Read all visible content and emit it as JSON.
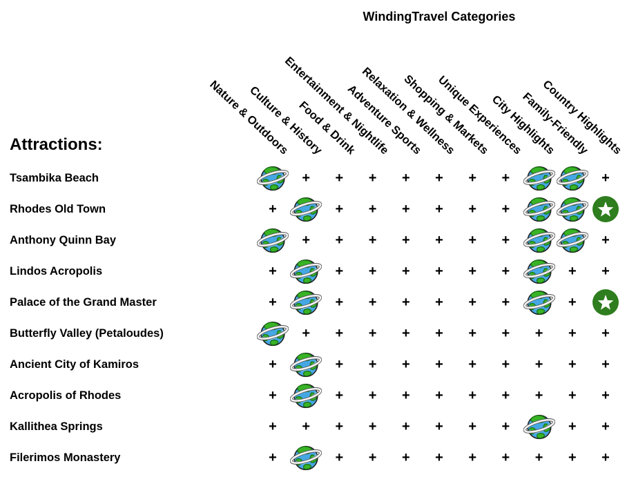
{
  "title": "WindingTravel Categories",
  "attractions_heading": "Attractions:",
  "symbols": {
    "plus": "+"
  },
  "icons": {
    "globe": "ringed-globe-icon",
    "star": "star-badge-icon",
    "plus": "plus-marker"
  },
  "colors": {
    "text": "#000000",
    "star_badge_green": "#2e7d1e",
    "star_fill": "#ffffff",
    "globe_ocean": "#45a7e3",
    "globe_land": "#38b326",
    "globe_land_outline": "#177010",
    "globe_ring": "#f4f4f4",
    "globe_ring_outline": "#555555"
  },
  "chart_data": {
    "type": "table",
    "title": "WindingTravel Categories",
    "row_axis_label": "Attractions:",
    "columns": [
      "Nature & Outdoors",
      "Culture & History",
      "Food & Drink",
      "Entertainment & Nightlife",
      "Adventure Sports",
      "Relaxation & Wellness",
      "Shopping & Markets",
      "Unique Experiences",
      "City Highlights",
      "Family-Friendly",
      "Country Highlights"
    ],
    "cell_types": {
      "globe": "ringed globe icon",
      "plus": "plus sign",
      "star": "white star in green circle"
    },
    "rows": [
      {
        "label": "Tsambika Beach",
        "cells": [
          "globe",
          "plus",
          "plus",
          "plus",
          "plus",
          "plus",
          "plus",
          "plus",
          "globe",
          "globe",
          "plus"
        ]
      },
      {
        "label": "Rhodes Old Town",
        "cells": [
          "plus",
          "globe",
          "plus",
          "plus",
          "plus",
          "plus",
          "plus",
          "plus",
          "globe",
          "globe",
          "star"
        ]
      },
      {
        "label": "Anthony Quinn Bay",
        "cells": [
          "globe",
          "plus",
          "plus",
          "plus",
          "plus",
          "plus",
          "plus",
          "plus",
          "globe",
          "globe",
          "plus"
        ]
      },
      {
        "label": "Lindos Acropolis",
        "cells": [
          "plus",
          "globe",
          "plus",
          "plus",
          "plus",
          "plus",
          "plus",
          "plus",
          "globe",
          "plus",
          "plus"
        ]
      },
      {
        "label": "Palace of the Grand Master",
        "cells": [
          "plus",
          "globe",
          "plus",
          "plus",
          "plus",
          "plus",
          "plus",
          "plus",
          "globe",
          "plus",
          "star"
        ]
      },
      {
        "label": "Butterfly Valley (Petaloudes)",
        "cells": [
          "globe",
          "plus",
          "plus",
          "plus",
          "plus",
          "plus",
          "plus",
          "plus",
          "plus",
          "plus",
          "plus"
        ]
      },
      {
        "label": "Ancient City of Kamiros",
        "cells": [
          "plus",
          "globe",
          "plus",
          "plus",
          "plus",
          "plus",
          "plus",
          "plus",
          "plus",
          "plus",
          "plus"
        ]
      },
      {
        "label": "Acropolis of Rhodes",
        "cells": [
          "plus",
          "globe",
          "plus",
          "plus",
          "plus",
          "plus",
          "plus",
          "plus",
          "plus",
          "plus",
          "plus"
        ]
      },
      {
        "label": "Kallithea Springs",
        "cells": [
          "plus",
          "plus",
          "plus",
          "plus",
          "plus",
          "plus",
          "plus",
          "plus",
          "globe",
          "plus",
          "plus"
        ]
      },
      {
        "label": "Filerimos Monastery",
        "cells": [
          "plus",
          "globe",
          "plus",
          "plus",
          "plus",
          "plus",
          "plus",
          "plus",
          "plus",
          "plus",
          "plus"
        ]
      }
    ]
  }
}
